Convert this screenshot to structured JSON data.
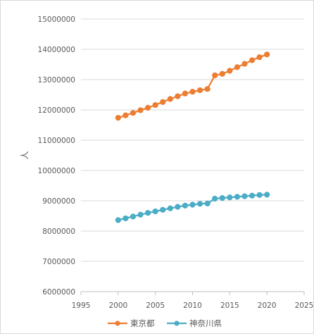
{
  "chart_data": {
    "type": "scatter",
    "mode": "lines+markers",
    "title": "",
    "xlabel": "",
    "ylabel": "人",
    "xlim": [
      1995,
      2025
    ],
    "ylim": [
      6000000,
      15000000
    ],
    "x_ticks": [
      "1995",
      "2000",
      "2005",
      "2010",
      "2015",
      "2020",
      "2025"
    ],
    "y_ticks": [
      "6000000",
      "7000000",
      "8000000",
      "9000000",
      "10000000",
      "11000000",
      "12000000",
      "13000000",
      "14000000",
      "15000000"
    ],
    "grid": "horizontal",
    "legend_position": "bottom",
    "series": [
      {
        "name": "東京都",
        "color": "#ed7d31",
        "x": [
          2000,
          2001,
          2002,
          2003,
          2004,
          2005,
          2006,
          2007,
          2008,
          2009,
          2010,
          2011,
          2012,
          2013,
          2014,
          2015,
          2016,
          2017,
          2018,
          2019,
          2020
        ],
        "y": [
          11740000,
          11820000,
          11900000,
          11990000,
          12070000,
          12160000,
          12260000,
          12360000,
          12450000,
          12540000,
          12600000,
          12650000,
          12690000,
          13140000,
          13190000,
          13290000,
          13410000,
          13520000,
          13640000,
          13740000,
          13830000
        ]
      },
      {
        "name": "神奈川県",
        "color": "#4bacc6",
        "x": [
          2000,
          2001,
          2002,
          2003,
          2004,
          2005,
          2006,
          2007,
          2008,
          2009,
          2010,
          2011,
          2012,
          2013,
          2014,
          2015,
          2016,
          2017,
          2018,
          2019,
          2020
        ],
        "y": [
          8360000,
          8420000,
          8480000,
          8540000,
          8600000,
          8650000,
          8700000,
          8750000,
          8800000,
          8840000,
          8870000,
          8900000,
          8910000,
          9070000,
          9090000,
          9110000,
          9130000,
          9150000,
          9170000,
          9190000,
          9200000
        ]
      }
    ]
  }
}
